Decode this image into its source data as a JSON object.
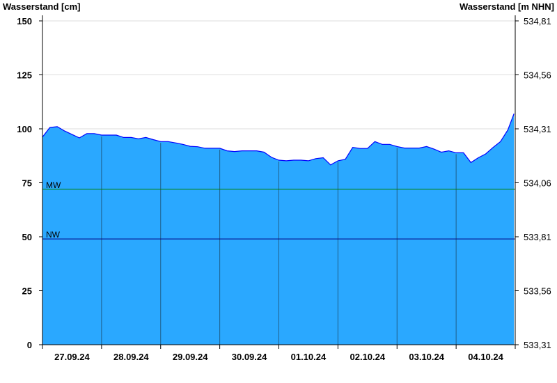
{
  "chart_data": {
    "type": "area",
    "ylabel_left": "Wasserstand [cm]",
    "ylabel_right": "Wasserstand [m NHN]",
    "ylim": [
      0,
      150
    ],
    "yticks_left": [
      "0",
      "25",
      "50",
      "75",
      "100",
      "125",
      "150"
    ],
    "yticks_right": [
      "533,31",
      "533,56",
      "533,81",
      "534,06",
      "534,31",
      "534,56",
      "534,81"
    ],
    "xlim": [
      "27.09.24 00:00",
      "05.10.24 00:00"
    ],
    "xtick_labels": [
      "27.09.24",
      "28.09.24",
      "29.09.24",
      "30.09.24",
      "01.10.24",
      "02.10.24",
      "03.10.24",
      "04.10.24"
    ],
    "grid": true,
    "levels": [
      {
        "name": "MW",
        "value": 72,
        "color": "#008000"
      },
      {
        "name": "NW",
        "value": 49,
        "color": "#000080"
      }
    ],
    "colors": {
      "fill": "#2aa8ff",
      "line": "#0000ff",
      "grid": "#dddddd"
    },
    "series": [
      {
        "x": [
          "27.09.24 00:00",
          "27.09.24 03:00",
          "27.09.24 06:00",
          "27.09.24 09:00",
          "27.09.24 12:00",
          "27.09.24 15:00",
          "27.09.24 18:00",
          "27.09.24 21:00",
          "28.09.24 00:00",
          "28.09.24 03:00",
          "28.09.24 06:00",
          "28.09.24 09:00",
          "28.09.24 12:00",
          "28.09.24 15:00",
          "28.09.24 18:00",
          "28.09.24 21:00",
          "29.09.24 00:00",
          "29.09.24 03:00",
          "29.09.24 06:00",
          "29.09.24 09:00",
          "29.09.24 12:00",
          "29.09.24 15:00",
          "29.09.24 18:00",
          "29.09.24 21:00",
          "30.09.24 00:00",
          "30.09.24 03:00",
          "30.09.24 06:00",
          "30.09.24 09:00",
          "30.09.24 12:00",
          "30.09.24 15:00",
          "30.09.24 18:00",
          "30.09.24 21:00",
          "01.10.24 00:00",
          "01.10.24 03:00",
          "01.10.24 06:00",
          "01.10.24 09:00",
          "01.10.24 12:00",
          "01.10.24 15:00",
          "01.10.24 18:00",
          "01.10.24 21:00",
          "02.10.24 00:00",
          "02.10.24 03:00",
          "02.10.24 06:00",
          "02.10.24 09:00",
          "02.10.24 12:00",
          "02.10.24 15:00",
          "02.10.24 18:00",
          "02.10.24 21:00",
          "03.10.24 00:00",
          "03.10.24 03:00",
          "03.10.24 06:00",
          "03.10.24 09:00",
          "03.10.24 12:00",
          "03.10.24 15:00",
          "03.10.24 18:00",
          "03.10.24 21:00",
          "04.10.24 00:00",
          "04.10.24 03:00",
          "04.10.24 06:00",
          "04.10.24 09:00",
          "04.10.24 12:00",
          "04.10.24 15:00",
          "04.10.24 18:00",
          "04.10.24 21:00",
          "04.10.24 23:30"
        ],
        "values": [
          96.2,
          100.6,
          101,
          99,
          97.4,
          95.8,
          97.8,
          97.8,
          97.1,
          97.1,
          97.1,
          96,
          96,
          95.4,
          96,
          95,
          94.1,
          94.1,
          93.5,
          92.8,
          91.9,
          91.7,
          91,
          91,
          91,
          89.8,
          89.5,
          89.8,
          89.8,
          89.8,
          89.2,
          86.8,
          85.5,
          85.2,
          85.5,
          85.5,
          85.2,
          86.2,
          86.6,
          83.3,
          85.2,
          85.9,
          91.4,
          90.9,
          90.9,
          94.1,
          92.8,
          92.8,
          91.8,
          91.1,
          91.1,
          91.1,
          91.8,
          90.6,
          89.2,
          89.8,
          88.9,
          88.9,
          84.4,
          86.6,
          88.4,
          91.4,
          94.1,
          99.5,
          107
        ]
      }
    ]
  }
}
